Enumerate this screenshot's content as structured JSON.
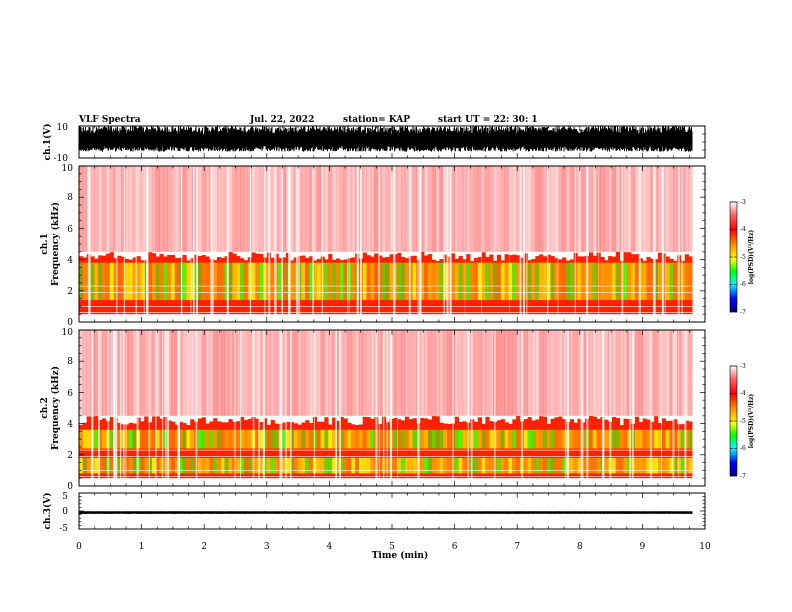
{
  "header": {
    "title": "VLF Spectra",
    "date": "Jul. 22, 2022",
    "station": "station= KAP",
    "start": "start UT = 22: 30: 1"
  },
  "colors": {
    "trace": "#000000",
    "colormap": [
      "#ffffff",
      "#ff0000",
      "#ff9900",
      "#ffff00",
      "#00ff00",
      "#00ffff",
      "#0000ff",
      "#000080"
    ]
  },
  "chart_data": [
    {
      "type": "line",
      "panel": "ch1-waveform",
      "ylabel": "ch.1(V)",
      "ylim": [
        -10,
        10
      ],
      "y_tick_labels": [
        "10",
        "-10"
      ],
      "xlim": [
        0,
        10
      ],
      "trace_min_approx": -6,
      "trace_max_approx": 10
    },
    {
      "type": "heatmap",
      "panel": "ch1-spectrogram",
      "ylabel": "ch.1",
      "ylabel2": "Frequency (kHz)",
      "ylim": [
        0,
        10
      ],
      "y_tick_labels": [
        "0",
        "2",
        "4",
        "6",
        "8",
        "10"
      ],
      "xlim": [
        0,
        10
      ],
      "data_end_min": 9.8,
      "strong_band_khz": [
        0.5,
        4.5
      ],
      "colorbar": {
        "label": "log(PSD)(V²/Hz)",
        "range": [
          -7,
          -3
        ],
        "tick_labels": [
          "-3",
          "-4",
          "-5",
          "-6",
          "-7"
        ]
      }
    },
    {
      "type": "heatmap",
      "panel": "ch2-spectrogram",
      "ylabel": "ch.2",
      "ylabel2": "Frequency (kHz)",
      "ylim": [
        0,
        10
      ],
      "y_tick_labels": [
        "0",
        "2",
        "4",
        "6",
        "8",
        "10"
      ],
      "xlim": [
        0,
        10
      ],
      "data_end_min": 9.8,
      "strong_band_khz": [
        0.5,
        4.5
      ],
      "colorbar": {
        "label": "log(PSD)(V²/Hz)",
        "range": [
          -7,
          -3
        ],
        "tick_labels": [
          "-3",
          "-4",
          "-5",
          "-6",
          "-7"
        ]
      }
    },
    {
      "type": "line",
      "panel": "ch3-waveform",
      "ylabel": "ch.3(V)",
      "ylim": [
        -5,
        5
      ],
      "y_tick_labels": [
        "5",
        "0",
        "-5"
      ],
      "xlim": [
        0,
        10
      ],
      "trace_min_approx": -0.8,
      "trace_max_approx": -0.1
    }
  ],
  "x_axis": {
    "label": "Time (min)",
    "tick_labels": [
      "0",
      "1",
      "2",
      "3",
      "4",
      "5",
      "6",
      "7",
      "8",
      "9",
      "10"
    ]
  }
}
